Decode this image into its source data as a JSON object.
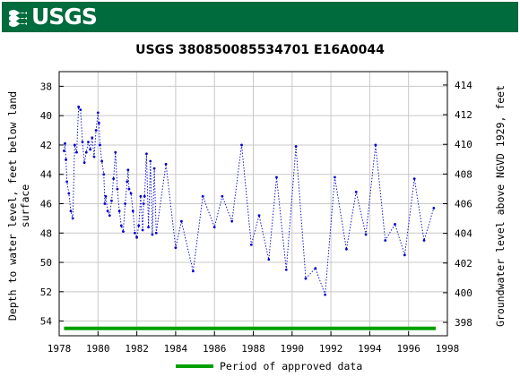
{
  "header": {
    "logo_text": "USGS",
    "logo_icon": "usgs-wave-icon"
  },
  "chart_data": {
    "type": "line",
    "title": "USGS 380850085534701 E16A0044",
    "ylabel_left": [
      "Depth to water level, feet below land",
      "surface"
    ],
    "ylabel_right": "Groundwater level above NGVD 1929, feet",
    "xlim": [
      1978,
      1998
    ],
    "ylim_left": [
      55.0,
      37.0
    ],
    "ylim_right": [
      397.1,
      414.9
    ],
    "x_ticks": [
      "1978",
      "1980",
      "1982",
      "1984",
      "1986",
      "1988",
      "1990",
      "1992",
      "1994",
      "1996",
      "1998"
    ],
    "y_ticks_left": [
      "38",
      "40",
      "42",
      "44",
      "46",
      "48",
      "50",
      "52",
      "54"
    ],
    "y_ticks_right": [
      "398",
      "400",
      "402",
      "404",
      "406",
      "408",
      "410",
      "412",
      "414"
    ],
    "grid": true,
    "series": [
      {
        "color": "#0000cc",
        "x": [
          1978.25,
          1978.3,
          1978.35,
          1978.4,
          1978.5,
          1978.6,
          1978.7,
          1978.8,
          1978.9,
          1979.0,
          1979.1,
          1979.2,
          1979.3,
          1979.4,
          1979.5,
          1979.6,
          1979.7,
          1979.8,
          1979.9,
          1980.0,
          1980.05,
          1980.1,
          1980.2,
          1980.3,
          1980.35,
          1980.4,
          1980.5,
          1980.6,
          1980.7,
          1980.8,
          1980.9,
          1981.0,
          1981.1,
          1981.2,
          1981.3,
          1981.4,
          1981.5,
          1981.55,
          1981.6,
          1981.7,
          1981.8,
          1981.9,
          1982.0,
          1982.1,
          1982.2,
          1982.3,
          1982.35,
          1982.4,
          1982.5,
          1982.6,
          1982.7,
          1982.8,
          1982.9,
          1983.0,
          1983.5,
          1984.0,
          1984.3,
          1984.9,
          1985.4,
          1986.0,
          1986.4,
          1986.9,
          1987.4,
          1987.9,
          1988.3,
          1988.8,
          1989.2,
          1989.7,
          1990.2,
          1990.7,
          1991.2,
          1991.7,
          1992.2,
          1992.8,
          1993.3,
          1993.8,
          1994.3,
          1994.8,
          1995.3,
          1995.8,
          1996.3,
          1996.8,
          1997.3
        ],
        "y": [
          42.4,
          41.9,
          43.0,
          44.5,
          45.3,
          46.5,
          47.0,
          42.0,
          42.5,
          39.4,
          39.6,
          41.8,
          43.2,
          42.5,
          41.8,
          42.3,
          41.5,
          42.8,
          41.0,
          39.8,
          40.5,
          42.0,
          43.1,
          44.0,
          46.0,
          45.5,
          46.5,
          46.8,
          45.8,
          44.3,
          42.5,
          45.0,
          46.5,
          47.5,
          47.9,
          46.0,
          44.5,
          43.7,
          45.0,
          45.3,
          46.5,
          48.0,
          48.3,
          47.5,
          45.5,
          47.8,
          46.0,
          45.5,
          42.6,
          47.6,
          43.1,
          48.1,
          43.6,
          48.0,
          43.3,
          49.0,
          47.2,
          50.6,
          45.5,
          47.6,
          45.5,
          47.2,
          42.0,
          48.8,
          46.8,
          49.8,
          44.2,
          50.5,
          42.1,
          51.1,
          50.4,
          52.2,
          44.2,
          49.1,
          45.2,
          48.1,
          42.0,
          48.5,
          47.4,
          49.5,
          44.3,
          48.5,
          46.3
        ]
      }
    ],
    "approved_period": {
      "x": [
        1978.25,
        1997.4
      ],
      "y": 54.5,
      "color": "#00a000"
    },
    "legend": {
      "label": "Period of approved data",
      "placement": "bottom-center"
    }
  }
}
